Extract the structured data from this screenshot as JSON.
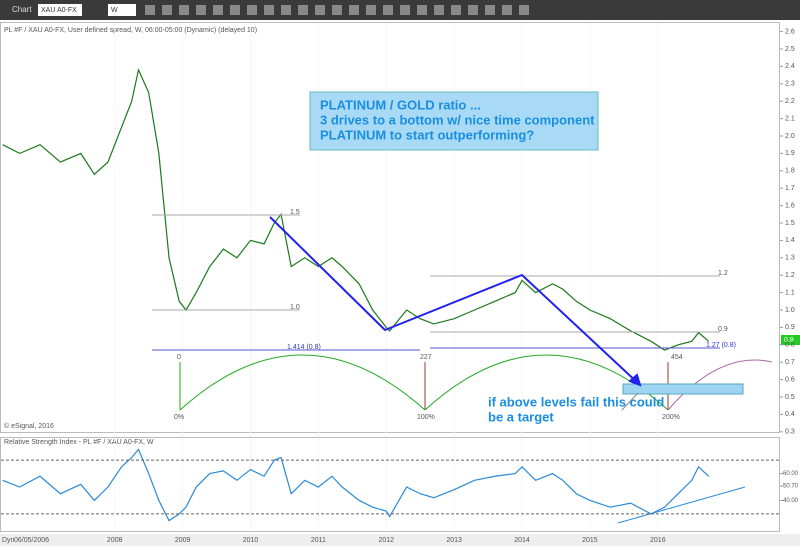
{
  "toolbar": {
    "window": "Chart",
    "symbol": "XAU A0-FX",
    "interval": "W"
  },
  "footer": {
    "mode": "Dyn",
    "date": "06/05/2006"
  },
  "annotations": {
    "box": [
      "PLATINUM / GOLD ratio ...",
      "3 drives to a bottom w/ nice time component",
      "PLATINUM to start outperforming?"
    ],
    "target": [
      "if above levels fail this could",
      "be a target"
    ],
    "fib": [
      "1.5",
      "1.0",
      "1.414 (0.8)",
      "1.2",
      "0.9",
      "1.27 (0.8)"
    ],
    "bars": [
      "0",
      "227",
      "454"
    ],
    "time": [
      "0%",
      "100%",
      "200%"
    ],
    "credit": "© eSignal, 2016",
    "last": "0.8"
  },
  "chart_data": [
    {
      "type": "line",
      "title": "PL #F / XAU A0-FX, User defined spread, W, 06:00-05:00 (Dynamic) (delayed 10)",
      "color": "#1a7a1a",
      "x": [
        2006.35,
        2006.6,
        2006.9,
        2007.2,
        2007.5,
        2007.7,
        2007.9,
        2008.1,
        2008.25,
        2008.35,
        2008.5,
        2008.65,
        2008.8,
        2008.95,
        2009.05,
        2009.2,
        2009.4,
        2009.6,
        2009.8,
        2010.0,
        2010.2,
        2010.35,
        2010.45,
        2010.6,
        2010.8,
        2011.0,
        2011.2,
        2011.35,
        2011.6,
        2011.8,
        2012.0,
        2012.05,
        2012.3,
        2012.5,
        2012.7,
        2013.0,
        2013.3,
        2013.6,
        2013.9,
        2014.0,
        2014.2,
        2014.45,
        2014.6,
        2014.8,
        2015.0,
        2015.3,
        2015.6,
        2015.9,
        2016.1,
        2016.3,
        2016.5,
        2016.6,
        2016.75
      ],
      "values": [
        1.95,
        1.9,
        1.95,
        1.85,
        1.9,
        1.78,
        1.85,
        2.05,
        2.2,
        2.38,
        2.25,
        1.9,
        1.3,
        1.05,
        1.0,
        1.1,
        1.25,
        1.35,
        1.3,
        1.4,
        1.38,
        1.5,
        1.55,
        1.25,
        1.3,
        1.25,
        1.3,
        1.25,
        1.15,
        1.0,
        0.9,
        0.88,
        1.0,
        0.95,
        0.92,
        0.95,
        1.0,
        1.05,
        1.1,
        1.17,
        1.1,
        1.15,
        1.12,
        1.05,
        1.0,
        0.95,
        0.88,
        0.82,
        0.77,
        0.8,
        0.82,
        0.87,
        0.82
      ],
      "xlim": [
        2006.31,
        2017.8
      ],
      "xticks": [
        2008,
        2009,
        2010,
        2011,
        2012,
        2013,
        2014,
        2015,
        2016
      ],
      "ylim": [
        0.3,
        2.6
      ],
      "yticks": [
        2.6,
        2.5,
        2.4,
        2.3,
        2.2,
        2.1,
        {
          "value": 2,
          "label": "2.0"
        },
        1.9,
        1.8,
        1.7,
        1.6,
        1.5,
        1.4,
        1.3,
        1.2,
        1.1,
        {
          "value": 1,
          "label": "1.0"
        },
        0.9,
        0.8,
        0.7,
        0.6,
        0.5,
        0.4,
        0.3
      ]
    },
    {
      "type": "line",
      "title": "Relative Strength Index - PL #F / XAU A0-FX, W",
      "color": "#2a8ad8",
      "values": [
        55,
        50,
        58,
        45,
        52,
        40,
        50,
        65,
        72,
        78,
        60,
        40,
        25,
        30,
        35,
        50,
        60,
        62,
        55,
        63,
        58,
        70,
        72,
        45,
        55,
        50,
        58,
        50,
        40,
        35,
        32,
        28,
        50,
        45,
        42,
        48,
        55,
        58,
        60,
        65,
        55,
        60,
        55,
        45,
        40,
        35,
        38,
        30,
        35,
        45,
        55,
        65,
        58
      ],
      "ylim": [
        18,
        85
      ],
      "yticks": [
        {
          "value": 60,
          "label": "60.00"
        },
        {
          "value": 50.7,
          "label": "50.70"
        },
        {
          "value": 40,
          "label": "40.00"
        }
      ],
      "levels": [
        70,
        30
      ]
    }
  ]
}
